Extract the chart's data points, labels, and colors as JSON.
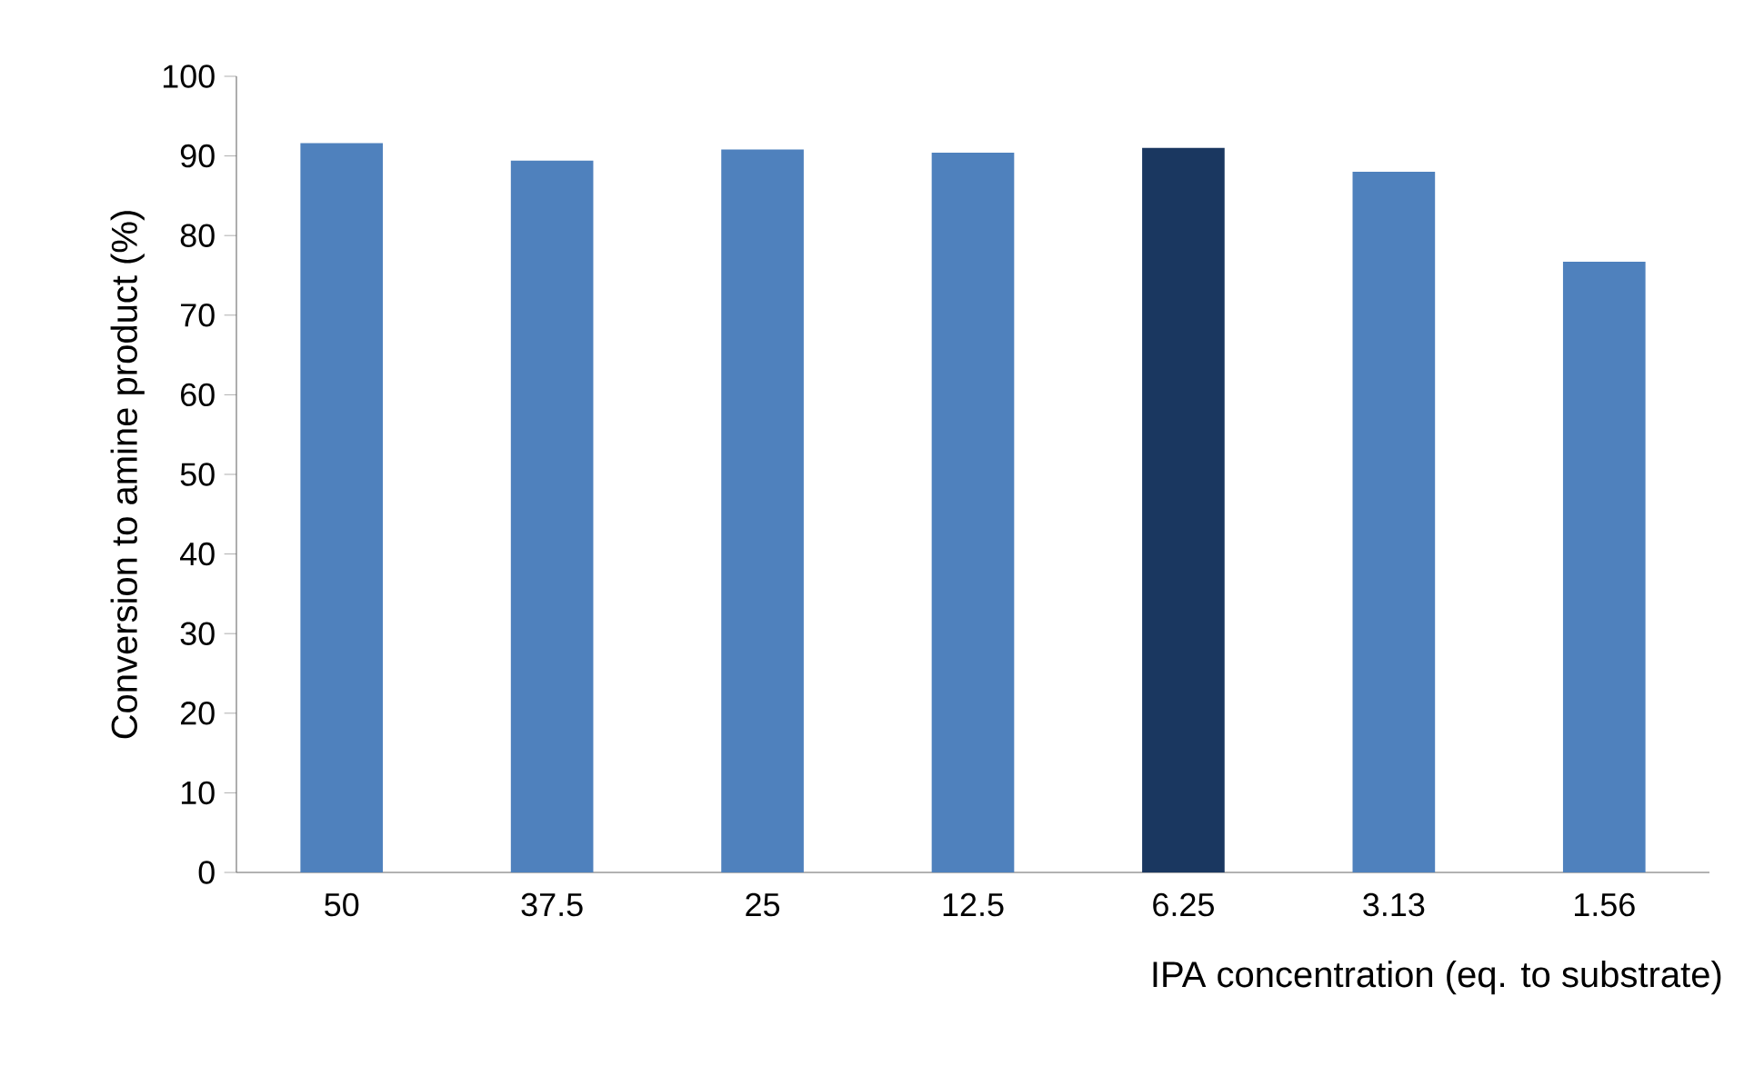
{
  "chart_data": {
    "type": "bar",
    "xlabel": "IPA concentration (eq. to substrate)",
    "ylabel": "Conversion to amine product (%)",
    "categories": [
      "50",
      "37.5",
      "25",
      "12.5",
      "6.25",
      "3.13",
      "1.56"
    ],
    "values": [
      91.6,
      89.4,
      90.8,
      90.4,
      91.0,
      88.0,
      76.7
    ],
    "colors": [
      "#4f81bd",
      "#4f81bd",
      "#4f81bd",
      "#4f81bd",
      "#1a3760",
      "#4f81bd",
      "#4f81bd"
    ],
    "ylim": [
      0,
      100
    ],
    "yticks": [
      0,
      10,
      20,
      30,
      40,
      50,
      60,
      70,
      80,
      90,
      100
    ],
    "grid": false
  }
}
